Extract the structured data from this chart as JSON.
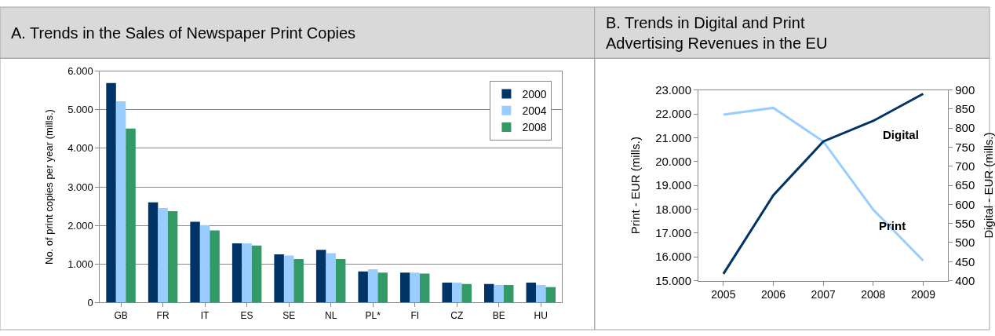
{
  "chart_data": [
    {
      "type": "bar",
      "title": "A. Trends in the Sales of Newspaper Print Copies",
      "ylabel": "No. of print copies per year (mills.)",
      "categories": [
        "GB",
        "FR",
        "IT",
        "ES",
        "SE",
        "NL",
        "PL*",
        "FI",
        "CZ",
        "BE",
        "HU"
      ],
      "series": [
        {
          "name": "2000",
          "color": "#003366",
          "values": [
            5690,
            2600,
            2095,
            1535,
            1250,
            1365,
            805,
            775,
            515,
            480,
            515
          ]
        },
        {
          "name": "2004",
          "color": "#99ccff",
          "values": [
            5220,
            2450,
            2010,
            1535,
            1220,
            1280,
            865,
            775,
            515,
            455,
            455
          ]
        },
        {
          "name": "2008",
          "color": "#339966",
          "values": [
            4510,
            2370,
            1870,
            1480,
            1130,
            1130,
            775,
            750,
            480,
            455,
            400
          ]
        }
      ],
      "ylim": [
        0,
        6000
      ],
      "yticks": [
        0,
        {
          "value": 1000,
          "label": "1.000"
        },
        {
          "value": 2000,
          "label": "2.000"
        },
        {
          "value": 3000,
          "label": "3.000"
        },
        {
          "value": 4000,
          "label": "4.000"
        },
        {
          "value": 5000,
          "label": "5.000"
        },
        {
          "value": 6000,
          "label": "6.000"
        }
      ],
      "grid": "y",
      "legend": "top right"
    },
    {
      "type": "line",
      "title": "B. Trends in Digital and Print Advertising Revenues in the EU",
      "ylabel": "Print - EUR (mills.)",
      "y2label": "Digital - EUR (mills.)",
      "categories": [
        "2005",
        "2006",
        "2007",
        "2008",
        "2009"
      ],
      "series": [
        {
          "name": "Print",
          "color": "#99ccff",
          "values": [
            21970,
            22250,
            20840,
            17980,
            15840
          ]
        },
        {
          "name": "Digital",
          "color": "#003366",
          "axis": "y2",
          "values": [
            418,
            624,
            765,
            819,
            890
          ]
        }
      ],
      "ylim": [
        15000,
        23000
      ],
      "yticks": [
        {
          "value": 15000,
          "label": "15.000"
        },
        {
          "value": 16000,
          "label": "16.000"
        },
        {
          "value": 17000,
          "label": "17.000"
        },
        {
          "value": 18000,
          "label": "18.000"
        },
        {
          "value": 19000,
          "label": "19.000"
        },
        {
          "value": 20000,
          "label": "20.000"
        },
        {
          "value": 21000,
          "label": "21.000"
        },
        {
          "value": 22000,
          "label": "22.000"
        },
        {
          "value": 23000,
          "label": "23.000"
        }
      ],
      "y2lim": [
        400,
        900
      ],
      "y2ticks": [
        400,
        450,
        500,
        550,
        600,
        650,
        700,
        750,
        800,
        850,
        900
      ],
      "grid": false,
      "legend": false
    }
  ]
}
